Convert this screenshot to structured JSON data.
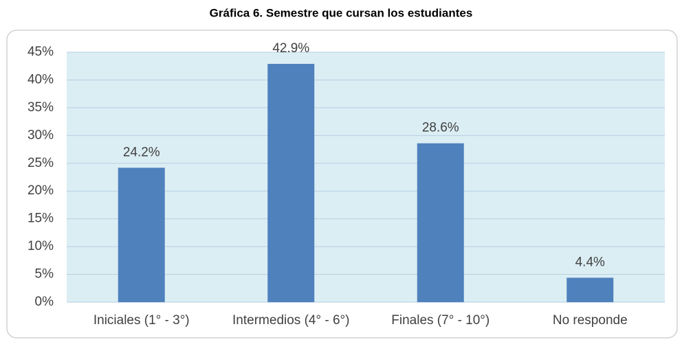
{
  "chart_data": {
    "type": "bar",
    "title": "Gráfica 6. Semestre que cursan los estudiantes",
    "categories": [
      "Iniciales (1° - 3°)",
      "Intermedios (4° - 6°)",
      "Finales (7° - 10°)",
      "No responde"
    ],
    "values": [
      24.2,
      42.9,
      28.6,
      4.4
    ],
    "value_labels": [
      "24.2%",
      "42.9%",
      "28.6%",
      "4.4%"
    ],
    "color": "#4f81bd",
    "ylim": [
      0,
      45
    ],
    "yticks": [
      {
        "value": 0,
        "label": "0%"
      },
      {
        "value": 5,
        "label": "5%"
      },
      {
        "value": 10,
        "label": "10%"
      },
      {
        "value": 15,
        "label": "15%"
      },
      {
        "value": 20,
        "label": "20%"
      },
      {
        "value": 25,
        "label": "25%"
      },
      {
        "value": 30,
        "label": "30%"
      },
      {
        "value": 35,
        "label": "35%"
      },
      {
        "value": 40,
        "label": "40%"
      },
      {
        "value": 45,
        "label": "45%"
      }
    ],
    "grid": true
  }
}
